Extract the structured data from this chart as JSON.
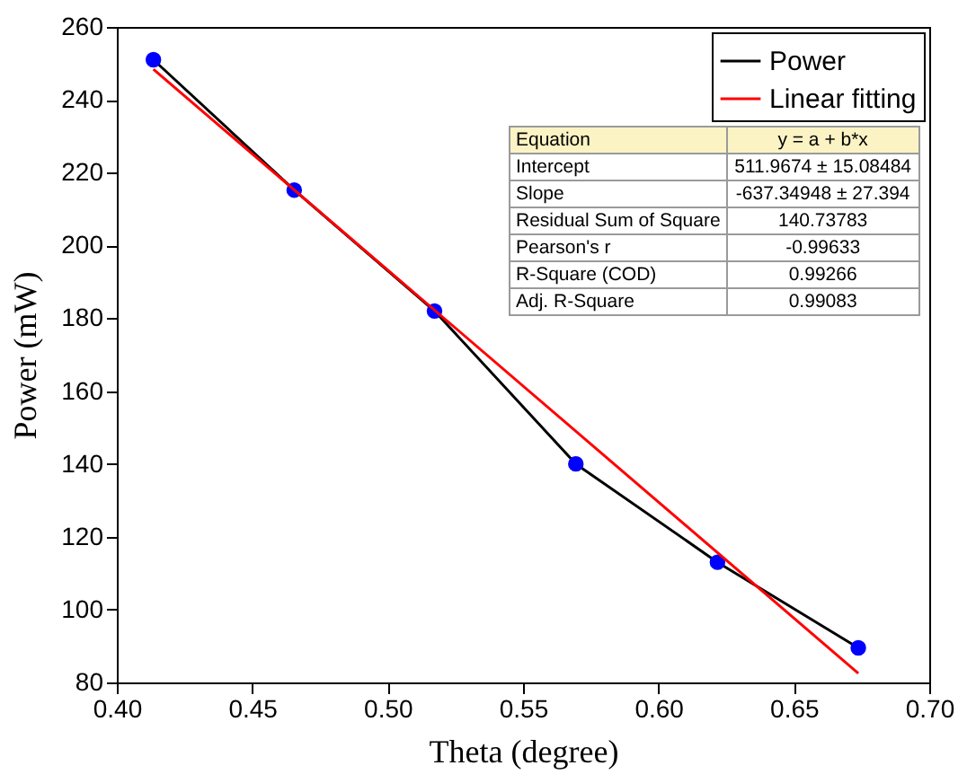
{
  "chart_data": {
    "type": "line",
    "xlabel": "Theta (degree)",
    "ylabel": "Power (mW)",
    "x": [
      0.4135,
      0.4655,
      0.5173,
      0.5695,
      0.6218,
      0.6738
    ],
    "series": [
      {
        "name": "Power",
        "color": "#000000",
        "colors": [
          "#0000ff",
          "#0000ff",
          "#0000ff",
          "#0000ff",
          "#0000ff",
          "#0000ff"
        ],
        "marker": "circle",
        "values": [
          251,
          215.2,
          182,
          140,
          113,
          89.5
        ]
      },
      {
        "name": "Linear fitting",
        "color": "#ff0000",
        "type": "line",
        "marker": "none",
        "x": [
          0.4135,
          0.6738
        ],
        "values": [
          248.4,
          82.5
        ]
      }
    ],
    "xlim": [
      0.4,
      0.7
    ],
    "xticks": [
      {
        "value": 0.4,
        "label": "0.40"
      },
      0.45,
      {
        "value": 0.5,
        "label": "0.50"
      },
      0.55,
      {
        "value": 0.6,
        "label": "0.60"
      },
      0.65,
      {
        "value": 0.7,
        "label": "0.70"
      }
    ],
    "ylim": [
      80,
      260
    ],
    "yticks": [
      80,
      100,
      120,
      140,
      160,
      180,
      200,
      220,
      240,
      260
    ],
    "grid": false,
    "legend": "top right",
    "annotations": [
      "Equation",
      "y = a + b*x",
      "Intercept",
      "511.9674 ± 15.08484",
      "Slope",
      "-637.34948 ± 27.394",
      "Residual Sum of Square",
      "140.73783",
      "Pearson's r",
      "-0.99633",
      "R-Square (COD)",
      "0.99266",
      "Adj. R-Square",
      "0.99083"
    ]
  }
}
